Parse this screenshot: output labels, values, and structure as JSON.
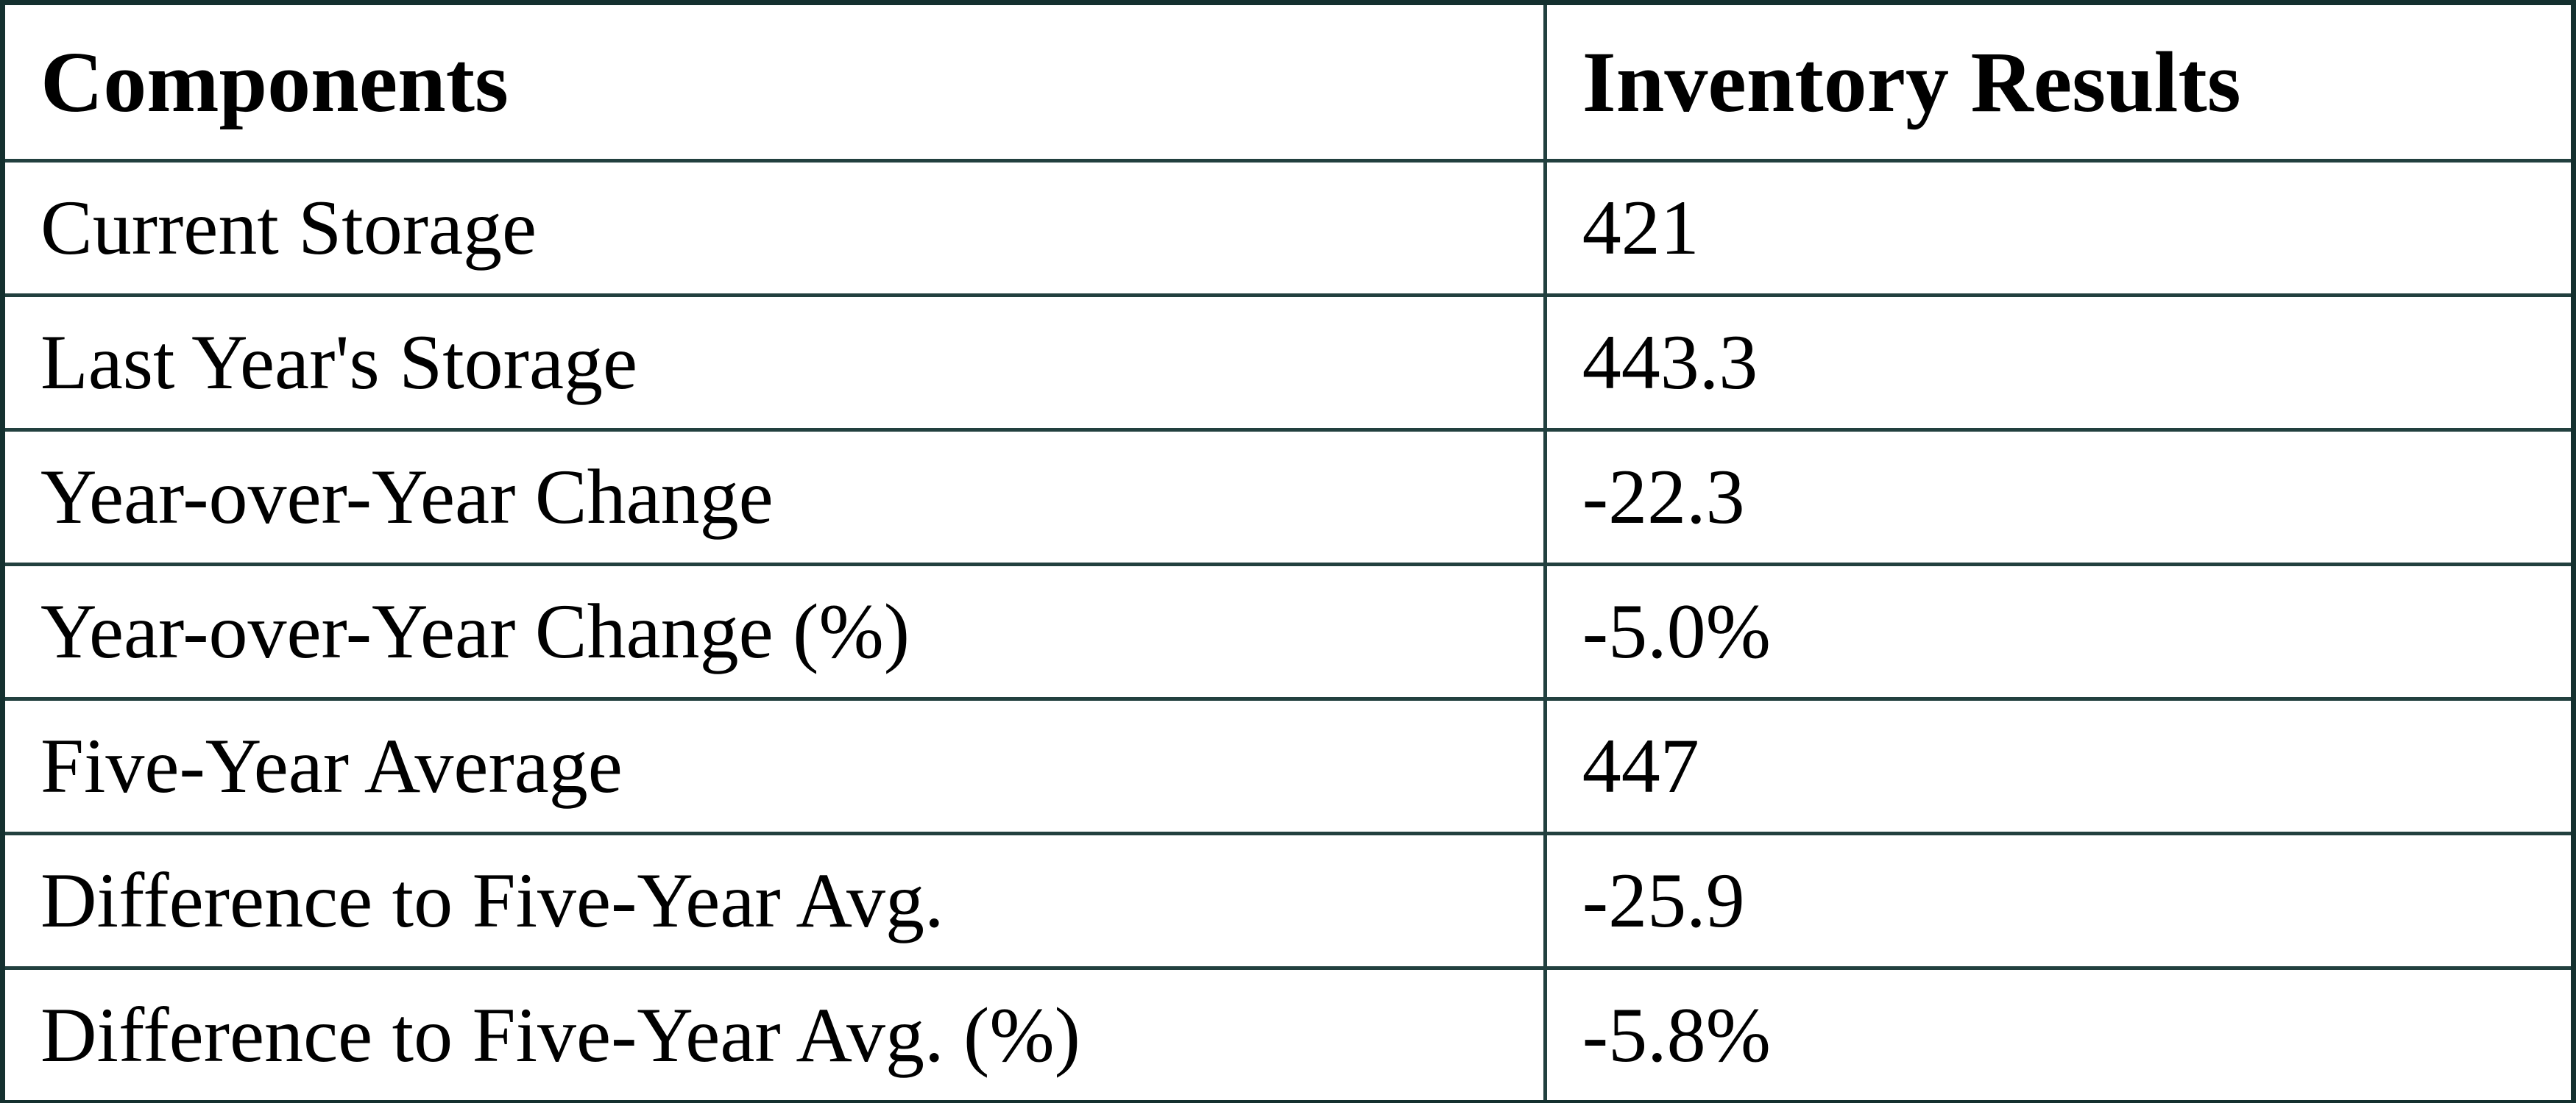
{
  "table": {
    "columns": {
      "components": "Components",
      "results": "Inventory Results"
    },
    "rows": [
      {
        "component": "Current Storage",
        "value": "421"
      },
      {
        "component": "Last Year's Storage",
        "value": "443.3"
      },
      {
        "component": "Year-over-Year Change",
        "value": "-22.3"
      },
      {
        "component": "Year-over-Year Change (%)",
        "value": "-5.0%"
      },
      {
        "component": "Five-Year Average",
        "value": "447"
      },
      {
        "component": "Difference to Five-Year Avg.",
        "value": "-25.9"
      },
      {
        "component": "Difference to Five-Year Avg. (%)",
        "value": "-5.8%"
      }
    ]
  },
  "chart_data": {
    "type": "table",
    "title": "Inventory Results",
    "columns": [
      "Components",
      "Inventory Results"
    ],
    "categories": [
      "Current Storage",
      "Last Year's Storage",
      "Year-over-Year Change",
      "Year-over-Year Change (%)",
      "Five-Year Average",
      "Difference to Five-Year Avg.",
      "Difference to Five-Year Avg. (%)"
    ],
    "values": [
      421,
      443.3,
      -22.3,
      "-5.0%",
      447,
      -25.9,
      "-5.8%"
    ],
    "colors": {
      "border": "#22403f",
      "text": "#000000",
      "background": "#ffffff"
    }
  }
}
